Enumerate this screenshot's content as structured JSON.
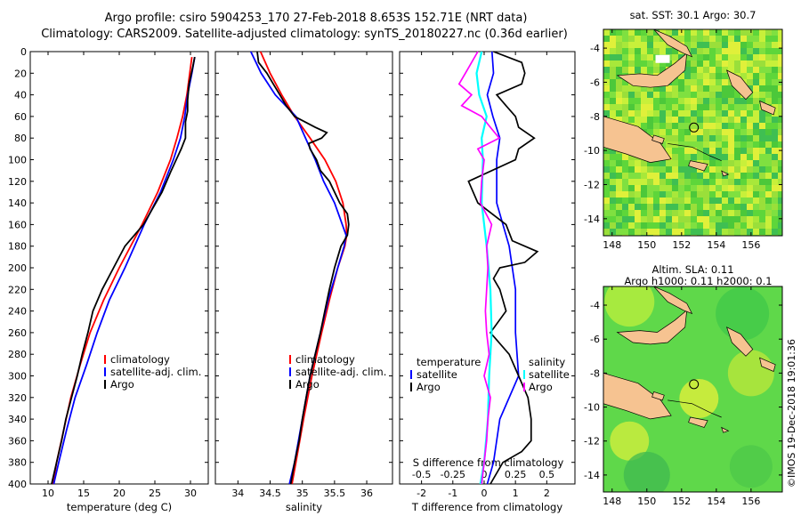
{
  "title": {
    "line1": "Argo profile: csiro 5904253_170 27-Feb-2018 8.653S 152.71E (NRT data)",
    "line2": "Climatology: CARS2009. Satellite-adjusted climatology: synTS_20180227.nc (0.36d earlier)"
  },
  "colors": {
    "climatology": "#ff0000",
    "satellite": "#0000ff",
    "argo": "#000000",
    "argo_salinity": "#ff00ff",
    "satellite_salinity": "#00ffff"
  },
  "chart_data": [
    {
      "type": "line",
      "id": "temperature",
      "xlabel": "temperature (deg C)",
      "ylabel": "",
      "xlim": [
        7.5,
        32.5
      ],
      "ylim": [
        0,
        400
      ],
      "xticks": [
        10,
        15,
        20,
        25,
        30
      ],
      "yticks": [
        0,
        20,
        40,
        60,
        80,
        100,
        120,
        140,
        160,
        180,
        200,
        220,
        240,
        260,
        280,
        300,
        320,
        340,
        360,
        380,
        400
      ],
      "legend": [
        "climatology",
        "satellite-adj. clim.",
        "Argo"
      ],
      "series": [
        {
          "name": "climatology",
          "depth": [
            5,
            20,
            40,
            60,
            80,
            100,
            130,
            160,
            200,
            230,
            260,
            290,
            320,
            350,
            380,
            400
          ],
          "values": [
            30.2,
            29.9,
            29.5,
            28.9,
            28.1,
            27.2,
            25.4,
            23.2,
            20.0,
            17.8,
            15.9,
            14.5,
            13.2,
            12.2,
            11.2,
            10.7
          ]
        },
        {
          "name": "satellite-adj. clim.",
          "depth": [
            5,
            20,
            40,
            60,
            80,
            100,
            130,
            160,
            200,
            230,
            260,
            290,
            320,
            350,
            380,
            400
          ],
          "values": [
            30.6,
            30.2,
            29.6,
            29.2,
            28.6,
            27.6,
            25.8,
            23.5,
            20.8,
            18.6,
            16.9,
            15.4,
            13.8,
            12.6,
            11.5,
            10.8
          ]
        },
        {
          "name": "Argo",
          "depth": [
            5,
            15,
            30,
            45,
            55,
            65,
            80,
            90,
            100,
            110,
            130,
            160,
            180,
            200,
            220,
            240,
            260,
            280,
            300,
            320,
            340,
            360,
            380,
            400
          ],
          "values": [
            30.6,
            30.3,
            29.8,
            29.6,
            29.6,
            29.3,
            29.3,
            28.7,
            28.0,
            27.3,
            26.0,
            23.4,
            20.8,
            19.2,
            17.6,
            16.3,
            15.6,
            14.8,
            14.1,
            13.3,
            12.5,
            11.9,
            11.2,
            10.5
          ]
        }
      ]
    },
    {
      "type": "line",
      "id": "salinity",
      "xlabel": "salinity",
      "ylabel": "",
      "xlim": [
        33.65,
        36.4
      ],
      "ylim": [
        0,
        400
      ],
      "xticks": [
        34,
        34.5,
        35,
        35.5,
        36
      ],
      "yticks": [
        0,
        20,
        40,
        60,
        80,
        100,
        120,
        140,
        160,
        180,
        200,
        220,
        240,
        260,
        280,
        300,
        320,
        340,
        360,
        380,
        400
      ],
      "legend": [
        "climatology",
        "satellite-adj. clim.",
        "Argo"
      ],
      "series": [
        {
          "name": "climatology",
          "depth": [
            0,
            20,
            40,
            60,
            80,
            100,
            120,
            140,
            160,
            170,
            180,
            200,
            230,
            260,
            300,
            340,
            380,
            400
          ],
          "values": [
            34.35,
            34.5,
            34.68,
            34.88,
            35.12,
            35.35,
            35.52,
            35.63,
            35.68,
            35.69,
            35.66,
            35.55,
            35.42,
            35.3,
            35.15,
            35.02,
            34.9,
            34.84
          ]
        },
        {
          "name": "satellite-adj. clim.",
          "depth": [
            0,
            20,
            40,
            60,
            80,
            100,
            120,
            140,
            160,
            170,
            180,
            200,
            230,
            260,
            300,
            340,
            380,
            400
          ],
          "values": [
            34.2,
            34.36,
            34.58,
            34.9,
            35.05,
            35.2,
            35.33,
            35.5,
            35.62,
            35.68,
            35.65,
            35.55,
            35.4,
            35.28,
            35.12,
            35.0,
            34.88,
            34.8
          ]
        },
        {
          "name": "Argo",
          "depth": [
            0,
            10,
            20,
            30,
            40,
            50,
            60,
            70,
            75,
            80,
            85,
            90,
            100,
            110,
            120,
            140,
            150,
            160,
            170,
            180,
            200,
            220,
            240,
            260,
            280,
            300,
            320,
            340,
            360,
            380,
            400
          ],
          "values": [
            34.3,
            34.32,
            34.45,
            34.55,
            34.65,
            34.75,
            34.88,
            35.2,
            35.38,
            35.3,
            35.1,
            35.12,
            35.22,
            35.28,
            35.42,
            35.58,
            35.7,
            35.72,
            35.7,
            35.6,
            35.5,
            35.42,
            35.35,
            35.28,
            35.2,
            35.12,
            35.06,
            35.0,
            34.95,
            34.88,
            34.82
          ]
        }
      ]
    },
    {
      "type": "line",
      "id": "differences",
      "xlabel": "T difference from climatology",
      "xlabel_top": "S difference from climatology",
      "xlim": [
        -2.7,
        2.9
      ],
      "xlim_s": [
        -0.675,
        0.725
      ],
      "ylim": [
        0,
        400
      ],
      "xticks": [
        -2,
        -1,
        0,
        1,
        2
      ],
      "xticks_s": [
        -0.5,
        -0.25,
        0,
        0.25,
        0.5
      ],
      "xticklabels_s": [
        "-0.5",
        "-0.25",
        "0",
        "0.25",
        "0.5"
      ],
      "yticks": [
        0,
        20,
        40,
        60,
        80,
        100,
        120,
        140,
        160,
        180,
        200,
        220,
        240,
        260,
        280,
        300,
        320,
        340,
        360,
        380,
        400
      ],
      "legend_left": {
        "title": "temperature",
        "items": [
          "satellite",
          "Argo"
        ]
      },
      "legend_right": {
        "title": "salinity",
        "items": [
          "satellite",
          "Argo"
        ]
      },
      "series": [
        {
          "name": "T satellite",
          "depth": [
            0,
            20,
            40,
            60,
            80,
            100,
            140,
            180,
            220,
            260,
            300,
            340,
            380,
            400
          ],
          "values": [
            0.25,
            0.3,
            0.1,
            0.28,
            0.5,
            0.4,
            0.4,
            0.8,
            1.0,
            1.0,
            1.1,
            0.5,
            0.3,
            0.1
          ]
        },
        {
          "name": "T Argo",
          "depth": [
            0,
            10,
            20,
            30,
            40,
            50,
            60,
            70,
            80,
            90,
            100,
            120,
            140,
            160,
            175,
            185,
            195,
            200,
            210,
            220,
            240,
            260,
            280,
            300,
            320,
            340,
            360,
            370,
            380,
            400
          ],
          "values": [
            0.3,
            1.2,
            1.3,
            1.2,
            0.4,
            0.7,
            1.0,
            1.1,
            1.6,
            1.1,
            1.0,
            -0.5,
            -0.2,
            0.7,
            0.9,
            1.7,
            1.3,
            0.5,
            0.3,
            0.5,
            0.7,
            0.2,
            0.8,
            1.1,
            1.4,
            1.5,
            1.5,
            1.2,
            0.6,
            0.2
          ]
        },
        {
          "name": "S satellite",
          "depth": [
            0,
            20,
            40,
            60,
            80,
            100,
            140,
            180,
            220,
            260,
            300,
            340,
            380,
            400
          ],
          "values": [
            -0.02,
            -0.06,
            -0.04,
            0.02,
            -0.02,
            -0.01,
            -0.02,
            0.02,
            0.05,
            0.06,
            0.04,
            0.03,
            0.0,
            -0.03
          ]
        },
        {
          "name": "S Argo",
          "depth": [
            0,
            20,
            30,
            40,
            50,
            60,
            70,
            80,
            90,
            100,
            120,
            140,
            160,
            180,
            200,
            220,
            240,
            260,
            280,
            300,
            320,
            340,
            360,
            380,
            400
          ],
          "values": [
            -0.05,
            -0.15,
            -0.2,
            -0.1,
            -0.18,
            -0.02,
            0.05,
            0.12,
            -0.05,
            0.0,
            -0.02,
            -0.03,
            0.06,
            0.02,
            0.03,
            0.02,
            0.01,
            0.02,
            0.04,
            0.0,
            0.05,
            0.03,
            0.02,
            0.0,
            -0.02
          ]
        }
      ]
    },
    {
      "type": "heatmap",
      "id": "sst_map",
      "title": "sat. SST: 30.1  Argo: 30.7",
      "xticks": [
        148,
        150,
        152,
        154,
        156
      ],
      "yticks": [
        -4,
        -6,
        -8,
        -10,
        -12,
        -14
      ],
      "xlim": [
        147.5,
        157.8
      ],
      "ylim": [
        -15,
        -2.9
      ],
      "marker": {
        "lon": 152.71,
        "lat": -8.653
      }
    },
    {
      "type": "heatmap",
      "id": "sla_map",
      "title": "Altim. SLA: 0.11",
      "subtitle": "Argo h1000: 0.11 h2000: 0.1",
      "xticks": [
        148,
        150,
        152,
        154,
        156
      ],
      "yticks": [
        -4,
        -6,
        -8,
        -10,
        -12,
        -14
      ],
      "xlim": [
        147.5,
        157.8
      ],
      "ylim": [
        -15,
        -2.9
      ],
      "marker": {
        "lon": 152.71,
        "lat": -8.653
      }
    }
  ],
  "credit": "©IMOS 19-Dec-2018 19:01:36"
}
